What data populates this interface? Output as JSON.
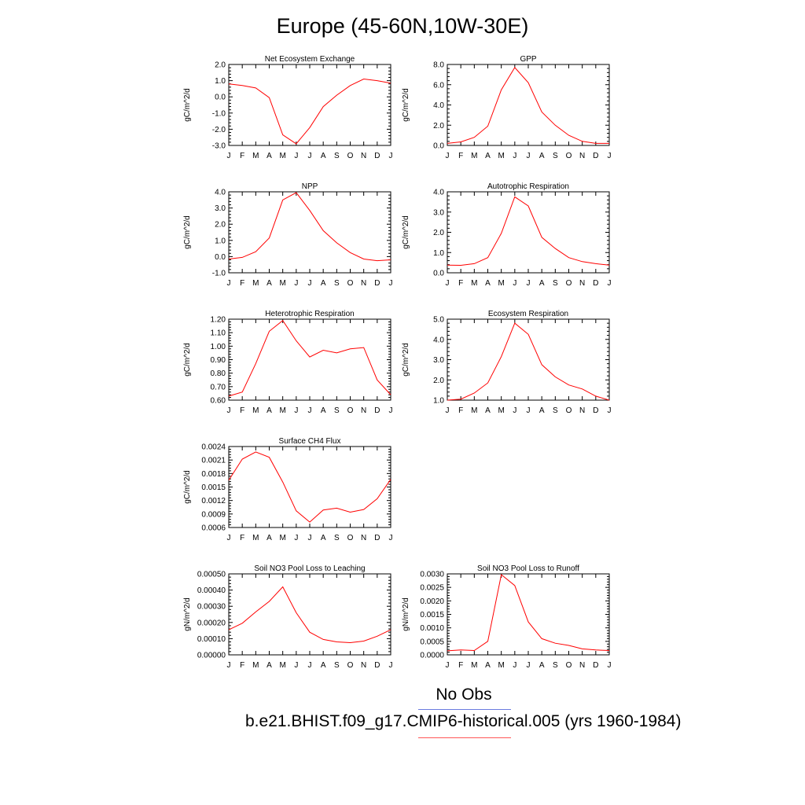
{
  "title": "Europe (45-60N,10W-30E)",
  "legend": {
    "obs_label": "No Obs",
    "model_label": "b.e21.BHIST.f09_g17.CMIP6-historical.005 (yrs 1960-1984)",
    "obs_color": "#6b7be0",
    "model_color": "#ff0000"
  },
  "chart_data": [
    {
      "type": "line",
      "title": "Net Ecosystem Exchange",
      "ylabel": "gC/m^2/d",
      "categories": [
        "J",
        "F",
        "M",
        "A",
        "M",
        "J",
        "J",
        "A",
        "S",
        "O",
        "N",
        "D",
        "J"
      ],
      "values": [
        0.8,
        0.7,
        0.55,
        -0.05,
        -2.35,
        -2.9,
        -1.9,
        -0.6,
        0.1,
        0.7,
        1.1,
        1.0,
        0.85
      ],
      "ylim": [
        -3.0,
        2.0
      ],
      "yticks": [
        -3.0,
        -2.0,
        -1.0,
        0.0,
        1.0,
        2.0
      ],
      "ytick_labels": [
        "-3.0",
        "-2.0",
        "-1.0",
        "0.0",
        "1.0",
        "2.0"
      ]
    },
    {
      "type": "line",
      "title": "GPP",
      "ylabel": "gC/m^2/d",
      "categories": [
        "J",
        "F",
        "M",
        "A",
        "M",
        "J",
        "J",
        "A",
        "S",
        "O",
        "N",
        "D",
        "J"
      ],
      "values": [
        0.2,
        0.35,
        0.8,
        1.9,
        5.5,
        7.7,
        6.2,
        3.3,
        2.0,
        1.0,
        0.4,
        0.2,
        0.2
      ],
      "ylim": [
        0.0,
        8.0
      ],
      "yticks": [
        0,
        2,
        4,
        6,
        8
      ],
      "ytick_labels": [
        "0.0",
        "2.0",
        "4.0",
        "6.0",
        "8.0"
      ]
    },
    {
      "type": "line",
      "title": "NPP",
      "ylabel": "gC/m^2/d",
      "categories": [
        "J",
        "F",
        "M",
        "A",
        "M",
        "J",
        "J",
        "A",
        "S",
        "O",
        "N",
        "D",
        "J"
      ],
      "values": [
        -0.15,
        -0.05,
        0.3,
        1.15,
        3.5,
        3.95,
        2.85,
        1.6,
        0.85,
        0.25,
        -0.15,
        -0.25,
        -0.2
      ],
      "ylim": [
        -1.0,
        4.0
      ],
      "yticks": [
        -1,
        0,
        1,
        2,
        3,
        4
      ],
      "ytick_labels": [
        "-1.0",
        "0.0",
        "1.0",
        "2.0",
        "3.0",
        "4.0"
      ]
    },
    {
      "type": "line",
      "title": "Autotrophic Respiration",
      "ylabel": "gC/m^2/d",
      "categories": [
        "J",
        "F",
        "M",
        "A",
        "M",
        "J",
        "J",
        "A",
        "S",
        "O",
        "N",
        "D",
        "J"
      ],
      "values": [
        0.38,
        0.37,
        0.45,
        0.75,
        1.95,
        3.75,
        3.3,
        1.75,
        1.2,
        0.75,
        0.55,
        0.45,
        0.38
      ],
      "ylim": [
        0.0,
        4.0
      ],
      "yticks": [
        0,
        1,
        2,
        3,
        4
      ],
      "ytick_labels": [
        "0.0",
        "1.0",
        "2.0",
        "3.0",
        "4.0"
      ]
    },
    {
      "type": "line",
      "title": "Heterotrophic Respiration",
      "ylabel": "gC/m^2/d",
      "categories": [
        "J",
        "F",
        "M",
        "A",
        "M",
        "J",
        "J",
        "A",
        "S",
        "O",
        "N",
        "D",
        "J"
      ],
      "values": [
        0.63,
        0.66,
        0.87,
        1.11,
        1.19,
        1.04,
        0.92,
        0.97,
        0.95,
        0.98,
        0.99,
        0.75,
        0.64
      ],
      "ylim": [
        0.6,
        1.2
      ],
      "yticks": [
        0.6,
        0.7,
        0.8,
        0.9,
        1.0,
        1.1,
        1.2
      ],
      "ytick_labels": [
        "0.60",
        "0.70",
        "0.80",
        "0.90",
        "1.00",
        "1.10",
        "1.20"
      ]
    },
    {
      "type": "line",
      "title": "Ecosystem Respiration",
      "ylabel": "gC/m^2/d",
      "categories": [
        "J",
        "F",
        "M",
        "A",
        "M",
        "J",
        "J",
        "A",
        "S",
        "O",
        "N",
        "D",
        "J"
      ],
      "values": [
        1.0,
        1.05,
        1.35,
        1.85,
        3.15,
        4.8,
        4.25,
        2.75,
        2.15,
        1.75,
        1.55,
        1.2,
        1.0
      ],
      "ylim": [
        1.0,
        5.0
      ],
      "yticks": [
        1,
        2,
        3,
        4,
        5
      ],
      "ytick_labels": [
        "1.0",
        "2.0",
        "3.0",
        "4.0",
        "5.0"
      ]
    },
    {
      "type": "line",
      "title": "Surface CH4 Flux",
      "ylabel": "gC/m^2/d",
      "categories": [
        "J",
        "F",
        "M",
        "A",
        "M",
        "J",
        "J",
        "A",
        "S",
        "O",
        "N",
        "D",
        "J"
      ],
      "values": [
        0.00165,
        0.00212,
        0.00228,
        0.00216,
        0.00161,
        0.00097,
        0.00072,
        0.00099,
        0.00103,
        0.00094,
        0.001,
        0.00124,
        0.00167
      ],
      "ylim": [
        0.0006,
        0.0024
      ],
      "yticks": [
        0.0006,
        0.0009,
        0.0012,
        0.0015,
        0.0018,
        0.0021,
        0.0024
      ],
      "ytick_labels": [
        "0.0006",
        "0.0009",
        "0.0012",
        "0.0015",
        "0.0018",
        "0.0021",
        "0.0024"
      ]
    },
    {
      "type": "line",
      "title": "Soil NO3 Pool Loss to Leaching",
      "ylabel": "gN/m^2/d",
      "categories": [
        "J",
        "F",
        "M",
        "A",
        "M",
        "J",
        "J",
        "A",
        "S",
        "O",
        "N",
        "D",
        "J"
      ],
      "values": [
        0.000155,
        0.000195,
        0.000265,
        0.00033,
        0.00042,
        0.00026,
        0.00014,
        9.5e-05,
        8e-05,
        7.5e-05,
        8.5e-05,
        0.000115,
        0.000155
      ],
      "ylim": [
        0.0,
        0.0005
      ],
      "yticks": [
        0,
        0.0001,
        0.0002,
        0.0003,
        0.0004,
        0.0005
      ],
      "ytick_labels": [
        "0.00000",
        "0.00010",
        "0.00020",
        "0.00030",
        "0.00040",
        "0.00050"
      ]
    },
    {
      "type": "line",
      "title": "Soil NO3 Pool Loss to Runoff",
      "ylabel": "gN/m^2/d",
      "categories": [
        "J",
        "F",
        "M",
        "A",
        "M",
        "J",
        "J",
        "A",
        "S",
        "O",
        "N",
        "D",
        "J"
      ],
      "values": [
        0.00015,
        0.00018,
        0.00016,
        0.0005,
        0.00297,
        0.00257,
        0.00122,
        0.0006,
        0.00043,
        0.00035,
        0.00022,
        0.00018,
        0.00016
      ],
      "ylim": [
        0.0,
        0.003
      ],
      "yticks": [
        0,
        0.0005,
        0.001,
        0.0015,
        0.002,
        0.0025,
        0.003
      ],
      "ytick_labels": [
        "0.0000",
        "0.0005",
        "0.0010",
        "0.0015",
        "0.0020",
        "0.0025",
        "0.0030"
      ]
    }
  ]
}
